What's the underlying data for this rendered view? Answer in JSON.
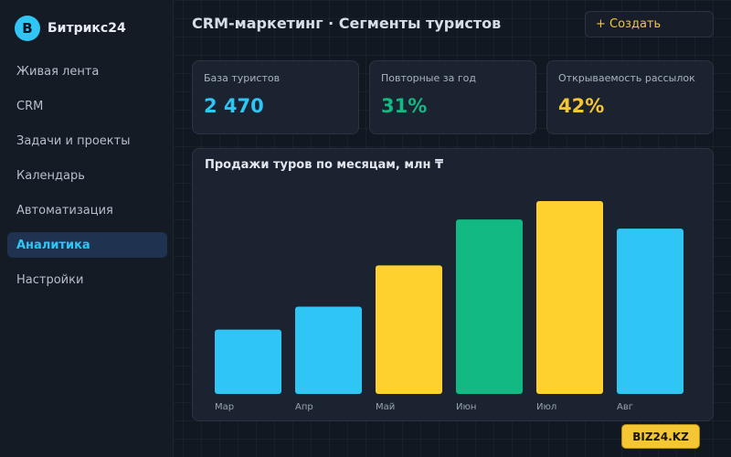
{
  "app": {
    "logo_letter": "B",
    "name": "Битрикс24"
  },
  "sidebar": {
    "items": [
      {
        "label": "Живая лента",
        "active": false
      },
      {
        "label": "CRM",
        "active": false
      },
      {
        "label": "Задачи и проекты",
        "active": false
      },
      {
        "label": "Календарь",
        "active": false
      },
      {
        "label": "Автоматизация",
        "active": false
      },
      {
        "label": "Аналитика",
        "active": true
      },
      {
        "label": "Настройки",
        "active": false
      }
    ]
  },
  "header": {
    "title": "CRM-маркетинг · Сегменты туристов",
    "create_label": "+ Создать"
  },
  "kpis": [
    {
      "label": "База туристов",
      "value": "2 470",
      "color": "#2fc5f5"
    },
    {
      "label": "Повторные за год",
      "value": "31%",
      "color": "#13b982"
    },
    {
      "label": "Открываемость рассылок",
      "value": "42%",
      "color": "#f5c633"
    }
  ],
  "chart_data": {
    "type": "bar",
    "title": "Продажи туров по месяцам, млн ₸",
    "categories": [
      "Мар",
      "Апр",
      "Май",
      "Июн",
      "Июл",
      "Авг"
    ],
    "values": [
      7,
      9.5,
      14,
      19,
      21,
      18
    ],
    "bar_colors": [
      "#2fc5f5",
      "#2fc5f5",
      "#ffd12e",
      "#13b982",
      "#ffd12e",
      "#2fc5f5"
    ],
    "ylim": [
      0,
      21
    ],
    "grid": false,
    "xlabel": "",
    "ylabel": ""
  },
  "brand_badge": "BIZ24.KZ"
}
